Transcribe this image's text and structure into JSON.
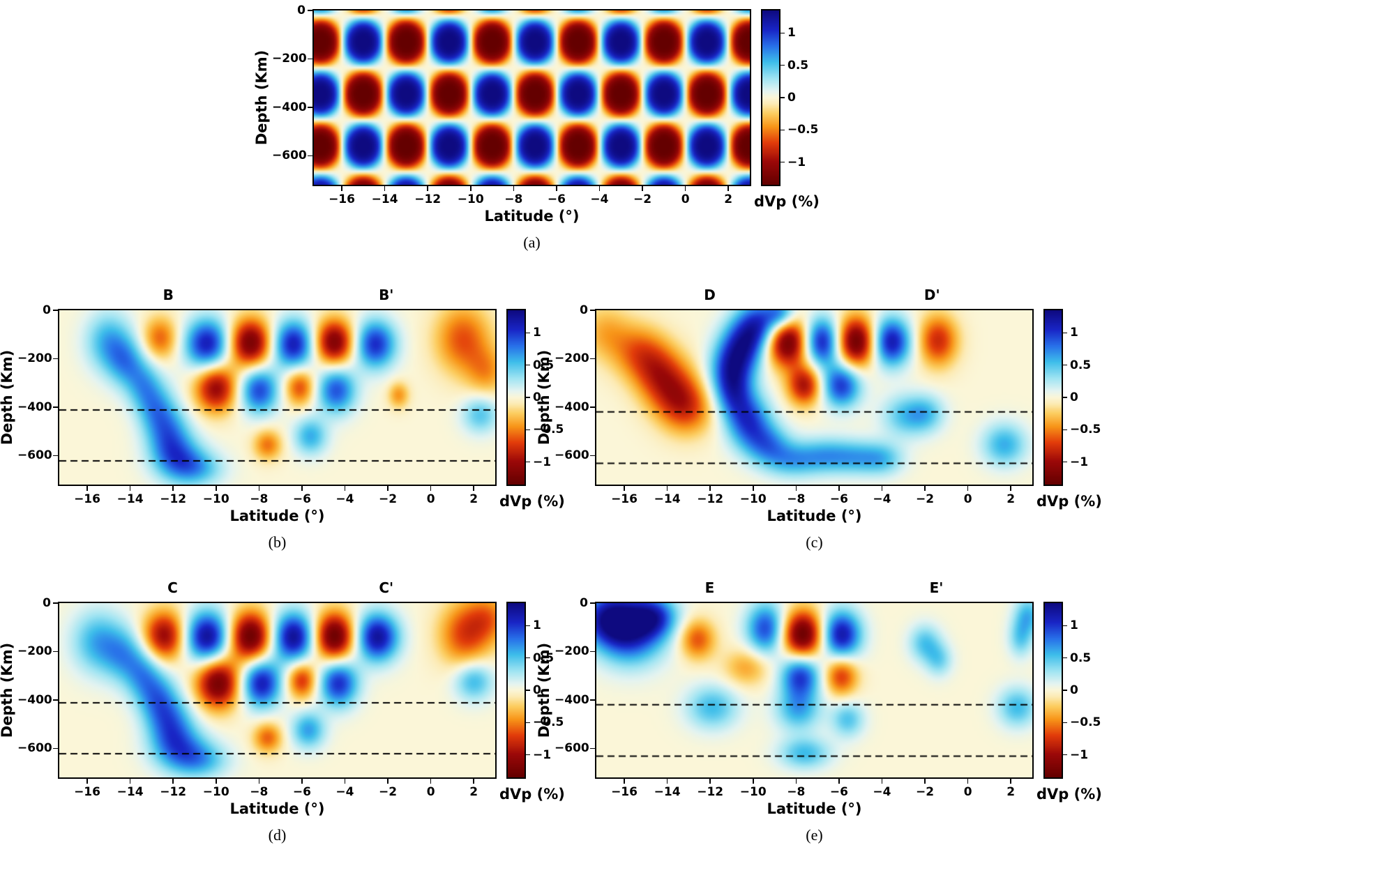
{
  "figure_type": "Seismic P-wave tomography checkerboard resolution test: input model (a) and recovered vertical cross-sections (b)-(e)",
  "axes": {
    "xlabel": "Latitude (°)",
    "ylabel": "Depth (Km)",
    "xticks": [
      -16,
      -14,
      -12,
      -10,
      -8,
      -6,
      -4,
      -2,
      0,
      2
    ],
    "yticks": [
      0,
      -200,
      -400,
      -600
    ],
    "xlim": [
      -17.3,
      3.0
    ],
    "ylim": [
      0,
      -720
    ]
  },
  "colorbar": {
    "label": "dVp (%)",
    "ticks": [
      1,
      0.5,
      0,
      -0.5,
      -1
    ],
    "vmin": -1.35,
    "vmax": 1.35,
    "stops": [
      [
        -1.35,
        100,
        0,
        0
      ],
      [
        -1.0,
        155,
        8,
        8
      ],
      [
        -0.7,
        226,
        60,
        10
      ],
      [
        -0.45,
        248,
        150,
        25
      ],
      [
        -0.25,
        252,
        205,
        95
      ],
      [
        -0.1,
        252,
        235,
        180
      ],
      [
        0.0,
        251,
        246,
        216
      ],
      [
        0.1,
        228,
        244,
        241
      ],
      [
        0.3,
        158,
        228,
        242
      ],
      [
        0.55,
        62,
        190,
        234
      ],
      [
        0.8,
        40,
        112,
        233
      ],
      [
        1.05,
        25,
        38,
        198
      ],
      [
        1.35,
        14,
        10,
        128
      ]
    ]
  },
  "blob_format": "[latitude_deg, depth_km, sigma_lat_deg, sigma_depth_km, amplitude_dVp_pct]",
  "chart_data": [
    {
      "type": "heatmap",
      "id": "a",
      "caption": "(a)",
      "pattern": "checkerboard",
      "checkerboard": {
        "lat_start": -17,
        "lat_step": 2,
        "lat_count": 11,
        "depth_centers": [
          85,
          -130,
          -345,
          -560,
          -775
        ],
        "sigma_lat": 0.68,
        "sigma_depth": 68,
        "amplitude": 1.35,
        "parity": "even-positive"
      },
      "dashed_depths": [],
      "blobs": []
    },
    {
      "type": "heatmap",
      "id": "b",
      "caption": "(b)",
      "section": [
        "B",
        "B'"
      ],
      "section_x": [
        0.25,
        0.75
      ],
      "dashed_depths": [
        -412,
        -622
      ],
      "blobs": [
        [
          -15.0,
          -130,
          0.75,
          85,
          0.6
        ],
        [
          -14.2,
          -215,
          0.62,
          72,
          0.55
        ],
        [
          -13.4,
          -305,
          0.58,
          72,
          0.5
        ],
        [
          -12.8,
          -405,
          0.62,
          78,
          0.55
        ],
        [
          -12.2,
          -505,
          0.68,
          78,
          0.6
        ],
        [
          -11.8,
          -605,
          0.85,
          68,
          0.65
        ],
        [
          -10.9,
          -655,
          0.9,
          52,
          0.5
        ],
        [
          -12.6,
          -115,
          0.58,
          62,
          -0.6
        ],
        [
          -10.4,
          -140,
          0.74,
          74,
          1.15
        ],
        [
          -8.4,
          -135,
          0.7,
          70,
          -1.25
        ],
        [
          -6.4,
          -140,
          0.7,
          70,
          1.15
        ],
        [
          -4.5,
          -132,
          0.66,
          66,
          -1.2
        ],
        [
          -2.6,
          -140,
          0.68,
          70,
          1.05
        ],
        [
          1.5,
          -120,
          0.9,
          100,
          -0.65
        ],
        [
          2.6,
          -255,
          0.65,
          70,
          -0.4
        ],
        [
          -10.0,
          -320,
          0.68,
          70,
          -1.05
        ],
        [
          -8.0,
          -330,
          0.64,
          68,
          0.95
        ],
        [
          -6.1,
          -316,
          0.5,
          54,
          -0.7
        ],
        [
          -4.4,
          -330,
          0.64,
          68,
          0.9
        ],
        [
          -1.5,
          -350,
          0.34,
          38,
          -0.45
        ],
        [
          -7.6,
          -556,
          0.46,
          44,
          -0.55
        ],
        [
          -5.6,
          -520,
          0.55,
          54,
          0.6
        ],
        [
          2.3,
          -430,
          0.6,
          55,
          0.5
        ]
      ]
    },
    {
      "type": "heatmap",
      "id": "c",
      "caption": "(c)",
      "section": [
        "D",
        "D'"
      ],
      "section_x": [
        0.26,
        0.77
      ],
      "dashed_depths": [
        -420,
        -632
      ],
      "blobs": [
        [
          -9.7,
          -60,
          0.7,
          70,
          0.95
        ],
        [
          -10.5,
          -150,
          0.7,
          80,
          0.95
        ],
        [
          -11.1,
          -250,
          0.68,
          80,
          0.8
        ],
        [
          -10.9,
          -350,
          0.62,
          72,
          0.65
        ],
        [
          -10.2,
          -460,
          0.72,
          78,
          0.9
        ],
        [
          -9.3,
          -552,
          0.72,
          58,
          0.6
        ],
        [
          -8.2,
          -618,
          0.92,
          52,
          0.55
        ],
        [
          -8.7,
          -15,
          0.5,
          45,
          0.7
        ],
        [
          -15.4,
          -170,
          0.85,
          80,
          -0.5
        ],
        [
          -14.5,
          -250,
          0.8,
          85,
          -0.55
        ],
        [
          -13.7,
          -330,
          0.85,
          88,
          -0.6
        ],
        [
          -13.0,
          -408,
          0.85,
          78,
          -0.55
        ],
        [
          -16.9,
          -90,
          0.8,
          80,
          -0.35
        ],
        [
          -8.4,
          -130,
          0.72,
          72,
          -1.35
        ],
        [
          -6.8,
          -130,
          0.64,
          70,
          1.2
        ],
        [
          -5.2,
          -130,
          0.68,
          72,
          -1.35
        ],
        [
          -3.6,
          -130,
          0.66,
          70,
          1.2
        ],
        [
          -1.4,
          -125,
          0.64,
          74,
          -0.8
        ],
        [
          -7.6,
          -310,
          0.56,
          58,
          -0.95
        ],
        [
          -5.9,
          -310,
          0.64,
          64,
          1.0
        ],
        [
          -2.9,
          -436,
          0.78,
          62,
          0.5
        ],
        [
          -1.9,
          -426,
          0.6,
          54,
          0.4
        ],
        [
          -6.6,
          -600,
          0.88,
          52,
          0.5
        ],
        [
          -5.1,
          -608,
          0.88,
          50,
          0.5
        ],
        [
          -3.9,
          -614,
          0.68,
          48,
          0.4
        ],
        [
          1.7,
          -555,
          0.72,
          62,
          0.6
        ]
      ]
    },
    {
      "type": "heatmap",
      "id": "d",
      "caption": "(d)",
      "section": [
        "C",
        "C'"
      ],
      "section_x": [
        0.26,
        0.75
      ],
      "dashed_depths": [
        -412,
        -622
      ],
      "blobs": [
        [
          -15.5,
          -160,
          0.85,
          90,
          0.6
        ],
        [
          -14.3,
          -215,
          0.68,
          78,
          0.5
        ],
        [
          -13.4,
          -295,
          0.62,
          78,
          0.55
        ],
        [
          -12.7,
          -395,
          0.64,
          78,
          0.6
        ],
        [
          -12.1,
          -495,
          0.72,
          78,
          0.65
        ],
        [
          -11.7,
          -598,
          0.92,
          68,
          0.65
        ],
        [
          -10.7,
          -650,
          0.92,
          52,
          0.5
        ],
        [
          -12.4,
          -135,
          0.7,
          72,
          -1.05
        ],
        [
          -10.4,
          -140,
          0.75,
          75,
          1.3
        ],
        [
          -8.4,
          -138,
          0.72,
          72,
          -1.35
        ],
        [
          -6.4,
          -140,
          0.72,
          72,
          1.3
        ],
        [
          -4.5,
          -138,
          0.68,
          70,
          -1.35
        ],
        [
          -2.5,
          -140,
          0.7,
          70,
          1.25
        ],
        [
          1.6,
          -130,
          0.85,
          95,
          -0.7
        ],
        [
          2.7,
          -60,
          0.7,
          70,
          -0.45
        ],
        [
          -9.9,
          -330,
          0.72,
          74,
          -1.25
        ],
        [
          -7.9,
          -330,
          0.66,
          70,
          1.15
        ],
        [
          -6.0,
          -318,
          0.5,
          54,
          -0.8
        ],
        [
          -4.3,
          -330,
          0.64,
          68,
          1.05
        ],
        [
          2.0,
          -320,
          0.64,
          58,
          0.6
        ],
        [
          -7.6,
          -556,
          0.47,
          44,
          -0.6
        ],
        [
          -5.7,
          -524,
          0.55,
          54,
          0.65
        ]
      ]
    },
    {
      "type": "heatmap",
      "id": "e",
      "caption": "(e)",
      "section": [
        "E",
        "E'"
      ],
      "section_x": [
        0.26,
        0.78
      ],
      "dashed_depths": [
        -420,
        -632
      ],
      "blobs": [
        [
          -15.7,
          -110,
          1.1,
          95,
          1.15
        ],
        [
          -16.8,
          -60,
          0.9,
          75,
          0.9
        ],
        [
          -14.6,
          -55,
          0.75,
          58,
          0.75
        ],
        [
          -12.6,
          -150,
          0.58,
          58,
          -0.65
        ],
        [
          -9.4,
          -105,
          0.64,
          74,
          0.95
        ],
        [
          -7.7,
          -130,
          0.68,
          70,
          -1.35
        ],
        [
          -5.9,
          -130,
          0.65,
          70,
          1.2
        ],
        [
          -2.0,
          -165,
          0.52,
          54,
          0.5
        ],
        [
          -1.35,
          -235,
          0.44,
          48,
          0.4
        ],
        [
          2.8,
          -50,
          0.45,
          55,
          0.55
        ],
        [
          2.45,
          -145,
          0.4,
          55,
          0.45
        ],
        [
          -10.3,
          -265,
          0.75,
          55,
          -0.4
        ],
        [
          -7.8,
          -300,
          0.64,
          64,
          1.0
        ],
        [
          -5.9,
          -300,
          0.54,
          58,
          -0.75
        ],
        [
          -11.9,
          -430,
          0.85,
          64,
          0.55
        ],
        [
          -7.9,
          -440,
          0.74,
          62,
          0.6
        ],
        [
          -5.6,
          -480,
          0.54,
          52,
          0.5
        ],
        [
          2.3,
          -430,
          0.64,
          58,
          0.55
        ],
        [
          -7.6,
          -620,
          0.84,
          46,
          0.55
        ]
      ]
    }
  ]
}
